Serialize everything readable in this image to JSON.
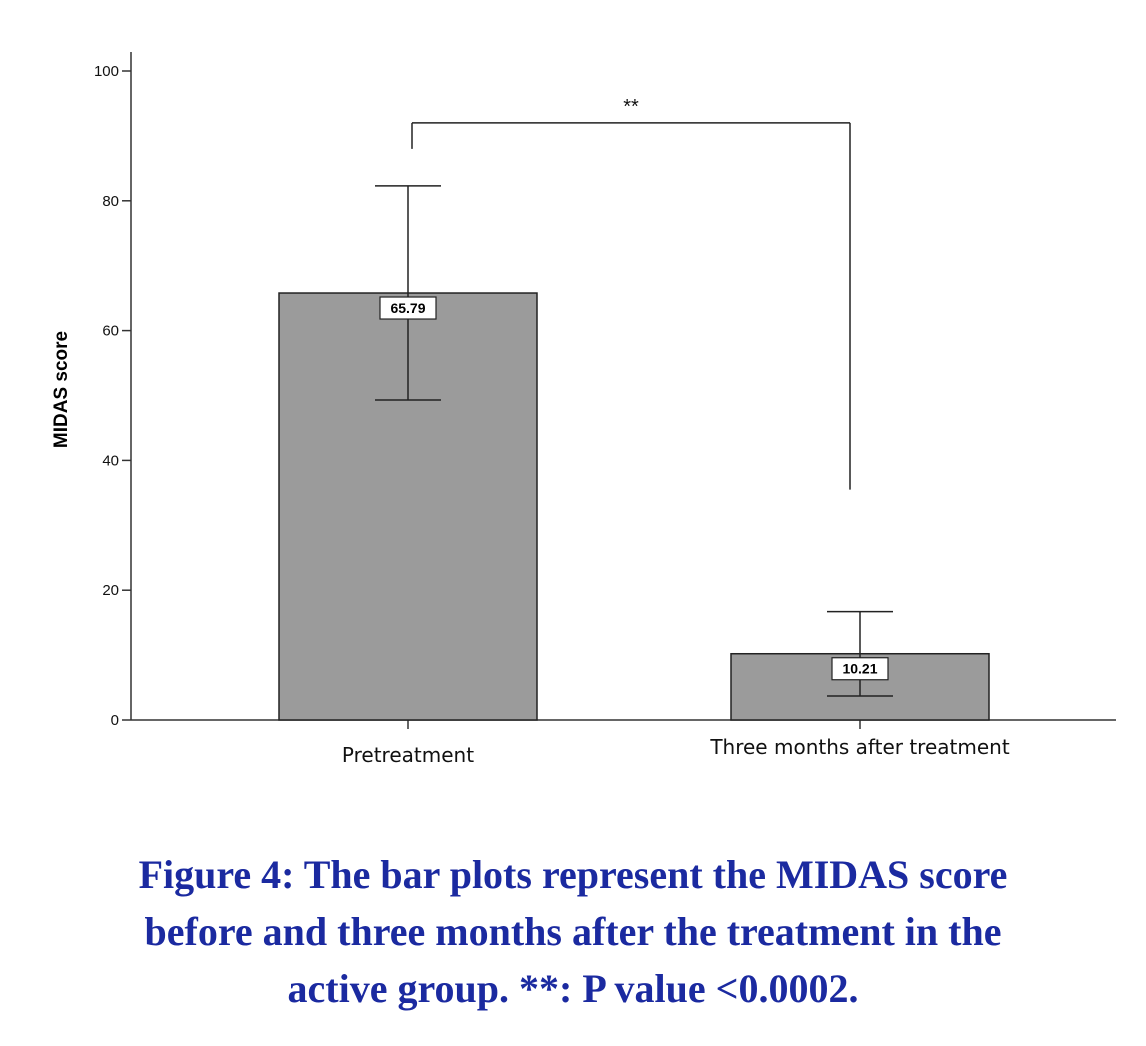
{
  "chart_data": {
    "type": "bar",
    "ylabel": "MIDAS score",
    "xlabel": "",
    "ylim": [
      0,
      100
    ],
    "yticks": [
      0,
      20,
      40,
      60,
      80,
      100
    ],
    "categories": [
      "Pretreatment",
      "Three months after treatment"
    ],
    "values": [
      65.79,
      10.21
    ],
    "value_labels": [
      "65.79",
      "10.21"
    ],
    "error_bars": [
      {
        "low": 49.3,
        "high": 82.3
      },
      {
        "low": 3.7,
        "high": 16.7
      }
    ],
    "significance": {
      "label": "**",
      "between": [
        0,
        1
      ],
      "bracket_y": 92,
      "left_end_y": 88,
      "right_end_y": 35.5
    },
    "bar_color": "#9b9b9b",
    "grid": false
  },
  "caption": {
    "line1": "Figure 4: The bar plots represent the MIDAS score",
    "line2": "before and three months after the treatment in the",
    "line3": "active group. **: P value <0.0002.",
    "color": "#1b2aa0"
  }
}
